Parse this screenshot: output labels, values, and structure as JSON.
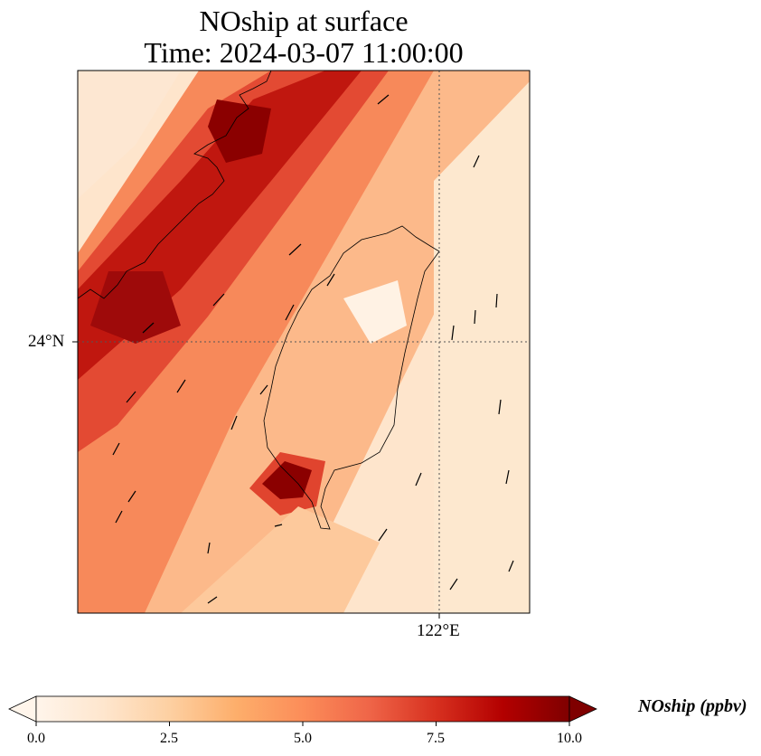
{
  "title": {
    "line1": "NOship at surface",
    "line2": "Time: 2024-03-07 11:00:00"
  },
  "axes": {
    "lat_label": "24°N",
    "lon_label": "122°E"
  },
  "colorbar": {
    "label": "NOship (ppbv)",
    "ticks": [
      "0.0",
      "2.5",
      "5.0",
      "7.5",
      "10.0"
    ],
    "min": 0,
    "max": 10,
    "extend": "both",
    "colormap": [
      "#fff5eb",
      "#fee6ce",
      "#fdd0a2",
      "#fdae6b",
      "#fd8d3c",
      "#f16913",
      "#d94801",
      "#a63603",
      "#7f2704"
    ]
  },
  "map_data": {
    "region": "Taiwan Strait / Taiwan",
    "lon_range": [
      118.7,
      122.5
    ],
    "lat_range": [
      21.8,
      26.4
    ],
    "gridlines": {
      "lon": [
        122
      ],
      "lat": [
        24
      ]
    }
  }
}
